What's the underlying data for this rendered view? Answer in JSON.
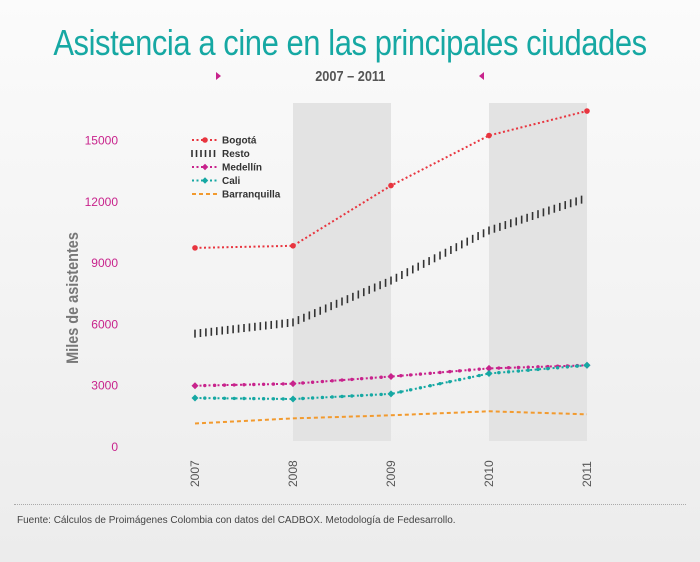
{
  "title": "Asistencia a cine en las principales ciudades",
  "subtitle": "2007 –  2011",
  "source": "Fuente: Cálculos de Proimágenes Colombia con datos del CADBOX. Metodología de Fedesarrollo.",
  "colors": {
    "title": "#16a8a3",
    "ytick": "#c8238c",
    "band": "#e3e3e3"
  },
  "chart_data": {
    "type": "line",
    "ylabel": "Miles de asistentes",
    "xlabel": "",
    "x": [
      "2007",
      "2008",
      "2009",
      "2010",
      "2011"
    ],
    "yticks": [
      "0",
      "3000",
      "6000",
      "9000",
      "12000",
      "15000"
    ],
    "ylim": [
      0,
      16500
    ],
    "grid": false,
    "shaded_bands": [
      [
        "2008",
        "2009"
      ],
      [
        "2010",
        "2011"
      ]
    ],
    "legend_position": "top-left",
    "series": [
      {
        "name": "Bogotá",
        "values": [
          9750,
          9850,
          12800,
          15250,
          16450
        ],
        "color": "#e8353f",
        "style": "dotted",
        "marker": "circle"
      },
      {
        "name": "Resto",
        "values": [
          5550,
          6100,
          8150,
          10600,
          12200
        ],
        "color": "#333333",
        "style": "hatch",
        "marker": "none"
      },
      {
        "name": "Medellín",
        "values": [
          3000,
          3100,
          3450,
          3850,
          4000
        ],
        "color": "#c8238c",
        "style": "dotted",
        "marker": "diamond"
      },
      {
        "name": "Cali",
        "values": [
          2400,
          2350,
          2600,
          3600,
          4000
        ],
        "color": "#16a8a3",
        "style": "dotted",
        "marker": "diamond"
      },
      {
        "name": "Barranquilla",
        "values": [
          1150,
          1400,
          1550,
          1750,
          1600
        ],
        "color": "#f29a2e",
        "style": "dashed",
        "marker": "none"
      }
    ]
  }
}
